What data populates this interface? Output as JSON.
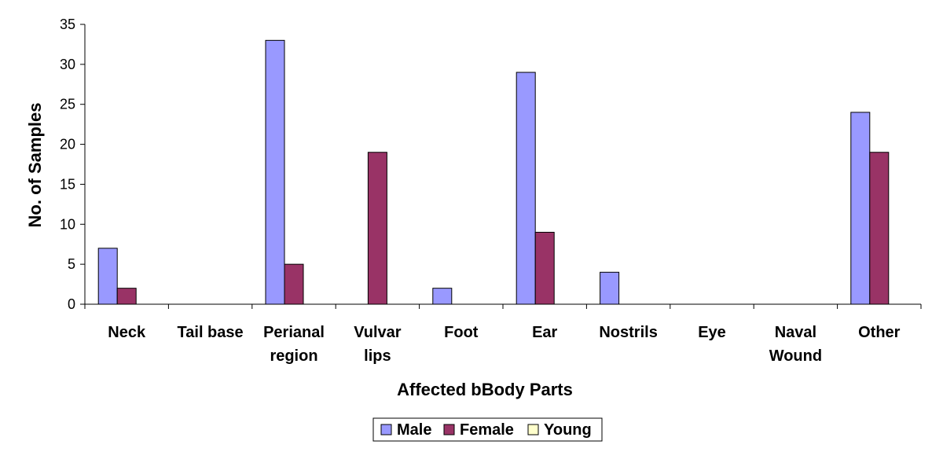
{
  "chart_data": {
    "type": "bar",
    "title": "",
    "xlabel": "Affected bBody Parts",
    "ylabel": "No. of Samples",
    "ylim": [
      0,
      35
    ],
    "yticks": [
      0,
      5,
      10,
      15,
      20,
      25,
      30,
      35
    ],
    "grid": false,
    "legend_position": "bottom",
    "categories": [
      [
        "Neck"
      ],
      [
        "Tail base"
      ],
      [
        "Perianal",
        "region"
      ],
      [
        "Vulvar",
        "lips"
      ],
      [
        "Foot"
      ],
      [
        "Ear"
      ],
      [
        "Nostrils"
      ],
      [
        "Eye"
      ],
      [
        "Naval",
        "Wound"
      ],
      [
        "Other"
      ]
    ],
    "series": [
      {
        "name": "Male",
        "color": "#9999FF",
        "values": [
          7,
          0,
          33,
          0,
          2,
          29,
          4,
          0,
          0,
          24
        ]
      },
      {
        "name": "Female",
        "color": "#993366",
        "values": [
          2,
          0,
          5,
          19,
          0,
          9,
          0,
          0,
          0,
          19
        ]
      },
      {
        "name": "Young",
        "color": "#FFFFCC",
        "values": [
          0,
          0,
          0,
          0,
          0,
          0,
          0,
          0,
          0,
          0
        ]
      }
    ]
  }
}
